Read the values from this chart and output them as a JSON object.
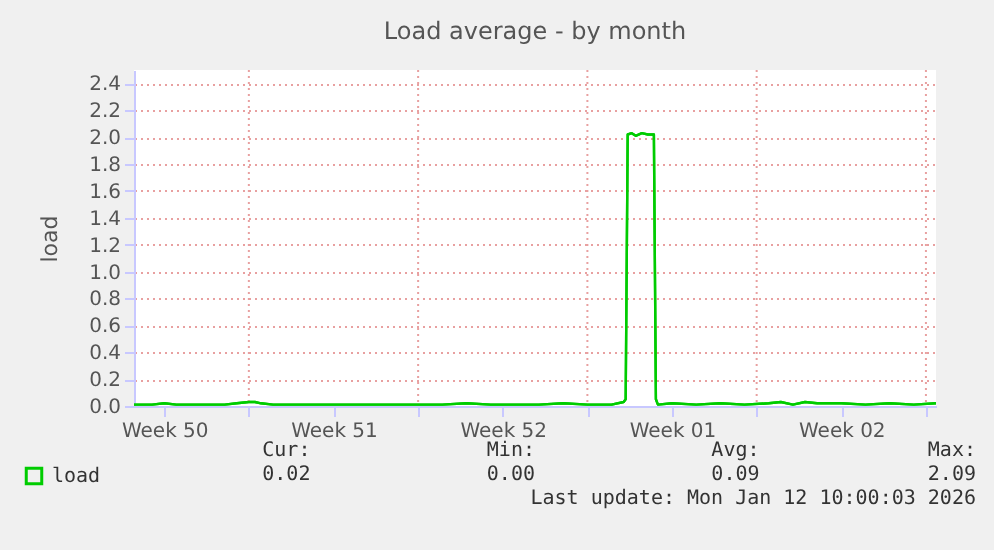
{
  "chart_data": {
    "type": "line",
    "title": "Load average - by month",
    "ylabel": "load",
    "x": [
      "2025-12-10T06:00",
      "2025-12-11T00:00",
      "2025-12-11T12:00",
      "2025-12-12T00:00",
      "2025-12-13T00:00",
      "2025-12-14T00:00",
      "2025-12-14T12:00",
      "2025-12-15T00:00",
      "2025-12-15T06:00",
      "2025-12-15T12:00",
      "2025-12-16T00:00",
      "2025-12-17T00:00",
      "2025-12-18T00:00",
      "2025-12-19T00:00",
      "2025-12-20T00:00",
      "2025-12-21T00:00",
      "2025-12-22T00:00",
      "2025-12-23T00:00",
      "2025-12-24T00:00",
      "2025-12-25T00:00",
      "2025-12-26T00:00",
      "2025-12-27T00:00",
      "2025-12-28T00:00",
      "2025-12-29T00:00",
      "2025-12-30T00:00",
      "2025-12-30T12:00",
      "2025-12-30T14:00",
      "2025-12-30T16:00",
      "2025-12-30T20:00",
      "2025-12-31T00:00",
      "2025-12-31T06:00",
      "2025-12-31T12:00",
      "2025-12-31T18:00",
      "2025-12-31T20:00",
      "2025-12-31T22:00",
      "2026-01-01T12:00",
      "2026-01-02T12:00",
      "2026-01-03T12:00",
      "2026-01-04T12:00",
      "2026-01-05T12:00",
      "2026-01-06T00:00",
      "2026-01-06T12:00",
      "2026-01-07T00:00",
      "2026-01-07T12:00",
      "2026-01-08T12:00",
      "2026-01-09T12:00",
      "2026-01-10T12:00",
      "2026-01-11T12:00",
      "2026-01-12T10:00"
    ],
    "series": [
      {
        "name": "load",
        "color": "#00cc00",
        "values": [
          0.01,
          0.01,
          0.02,
          0.01,
          0.01,
          0.01,
          0.02,
          0.03,
          0.03,
          0.02,
          0.01,
          0.01,
          0.01,
          0.01,
          0.01,
          0.01,
          0.01,
          0.01,
          0.02,
          0.01,
          0.01,
          0.01,
          0.02,
          0.01,
          0.01,
          0.03,
          0.05,
          2.02,
          2.03,
          2.01,
          2.03,
          2.02,
          2.02,
          0.05,
          0.01,
          0.02,
          0.01,
          0.02,
          0.01,
          0.02,
          0.03,
          0.01,
          0.03,
          0.02,
          0.02,
          0.01,
          0.02,
          0.01,
          0.02
        ]
      }
    ],
    "xlim": [
      "2025-12-10T06:00",
      "2026-01-12T10:00"
    ],
    "xticks": [
      {
        "value": "2025-12-11T12:00",
        "label": "Week 50"
      },
      {
        "value": "2025-12-18T12:00",
        "label": "Week 51"
      },
      {
        "value": "2025-12-25T12:00",
        "label": "Week 52"
      },
      {
        "value": "2026-01-01T12:00",
        "label": "Week 01"
      },
      {
        "value": "2026-01-08T12:00",
        "label": "Week 02"
      },
      {
        "value": "2025-12-15T00:00",
        "label": null
      },
      {
        "value": "2025-12-22T00:00",
        "label": null
      },
      {
        "value": "2025-12-29T00:00",
        "label": null
      },
      {
        "value": "2026-01-05T00:00",
        "label": null
      },
      {
        "value": "2026-01-12T00:00",
        "label": null
      }
    ],
    "ylim": [
      0,
      2.5
    ],
    "yticks": [
      {
        "value": 0,
        "label": "0.0"
      },
      {
        "value": 0.2,
        "label": "0.2"
      },
      {
        "value": 0.4,
        "label": "0.4"
      },
      {
        "value": 0.6,
        "label": "0.6"
      },
      {
        "value": 0.8,
        "label": "0.8"
      },
      {
        "value": 1,
        "label": "1.0"
      },
      {
        "value": 1.2,
        "label": "1.2"
      },
      {
        "value": 1.4,
        "label": "1.4"
      },
      {
        "value": 1.6,
        "label": "1.6"
      },
      {
        "value": 1.8,
        "label": "1.8"
      },
      {
        "value": 2,
        "label": "2.0"
      },
      {
        "value": 2.2,
        "label": "2.2"
      },
      {
        "value": 2.4,
        "label": "2.4"
      }
    ],
    "grid": true,
    "legend": "bottom left",
    "line_style": "solid",
    "marker": "none",
    "annotations": [
      "Cur:",
      "Min:",
      "Avg:",
      "Max:",
      "0.02",
      "0.00",
      "0.09",
      "2.09",
      "Last update: Mon Jan 12 10:00:03 2026"
    ]
  }
}
